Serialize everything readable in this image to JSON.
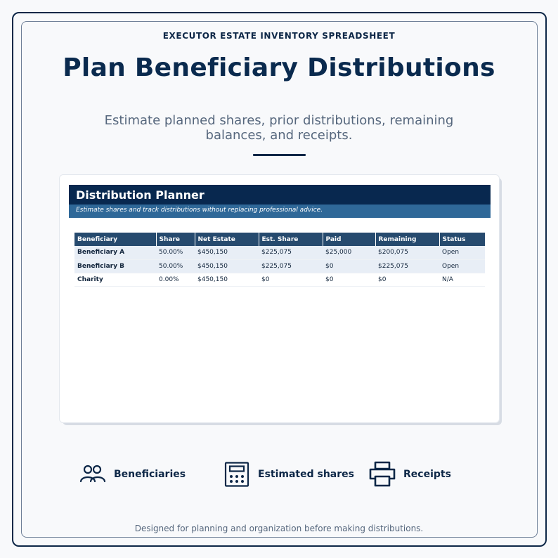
{
  "header": {
    "eyebrow": "EXECUTOR ESTATE INVENTORY SPREADSHEET",
    "title": "Plan Beneficiary Distributions",
    "subtitle": "Estimate planned shares, prior distributions, remaining balances, and receipts."
  },
  "card": {
    "title": "Distribution Planner",
    "subtitle": "Estimate shares and track distributions without replacing professional advice.",
    "columns": [
      "Beneficiary",
      "Share",
      "Net Estate",
      "Est. Share",
      "Paid",
      "Remaining",
      "Status"
    ],
    "rows": [
      [
        "Beneficiary A",
        "50.00%",
        "$450,150",
        "$225,075",
        "$25,000",
        "$200,075",
        "Open"
      ],
      [
        "Beneficiary B",
        "50.00%",
        "$450,150",
        "$225,075",
        "$0",
        "$225,075",
        "Open"
      ],
      [
        "Charity",
        "0.00%",
        "$450,150",
        "$0",
        "$0",
        "$0",
        "N/A"
      ]
    ]
  },
  "features": [
    {
      "icon": "people-icon",
      "label": "Beneficiaries"
    },
    {
      "icon": "calculator-icon",
      "label": "Estimated shares"
    },
    {
      "icon": "printer-icon",
      "label": "Receipts"
    }
  ],
  "footer": "Designed for planning and organization before making distributions.",
  "colors": {
    "navy": "#08284f",
    "accent_blue": "#2f6898",
    "table_header": "#264a6e",
    "row_shade": "#e8eef6"
  }
}
